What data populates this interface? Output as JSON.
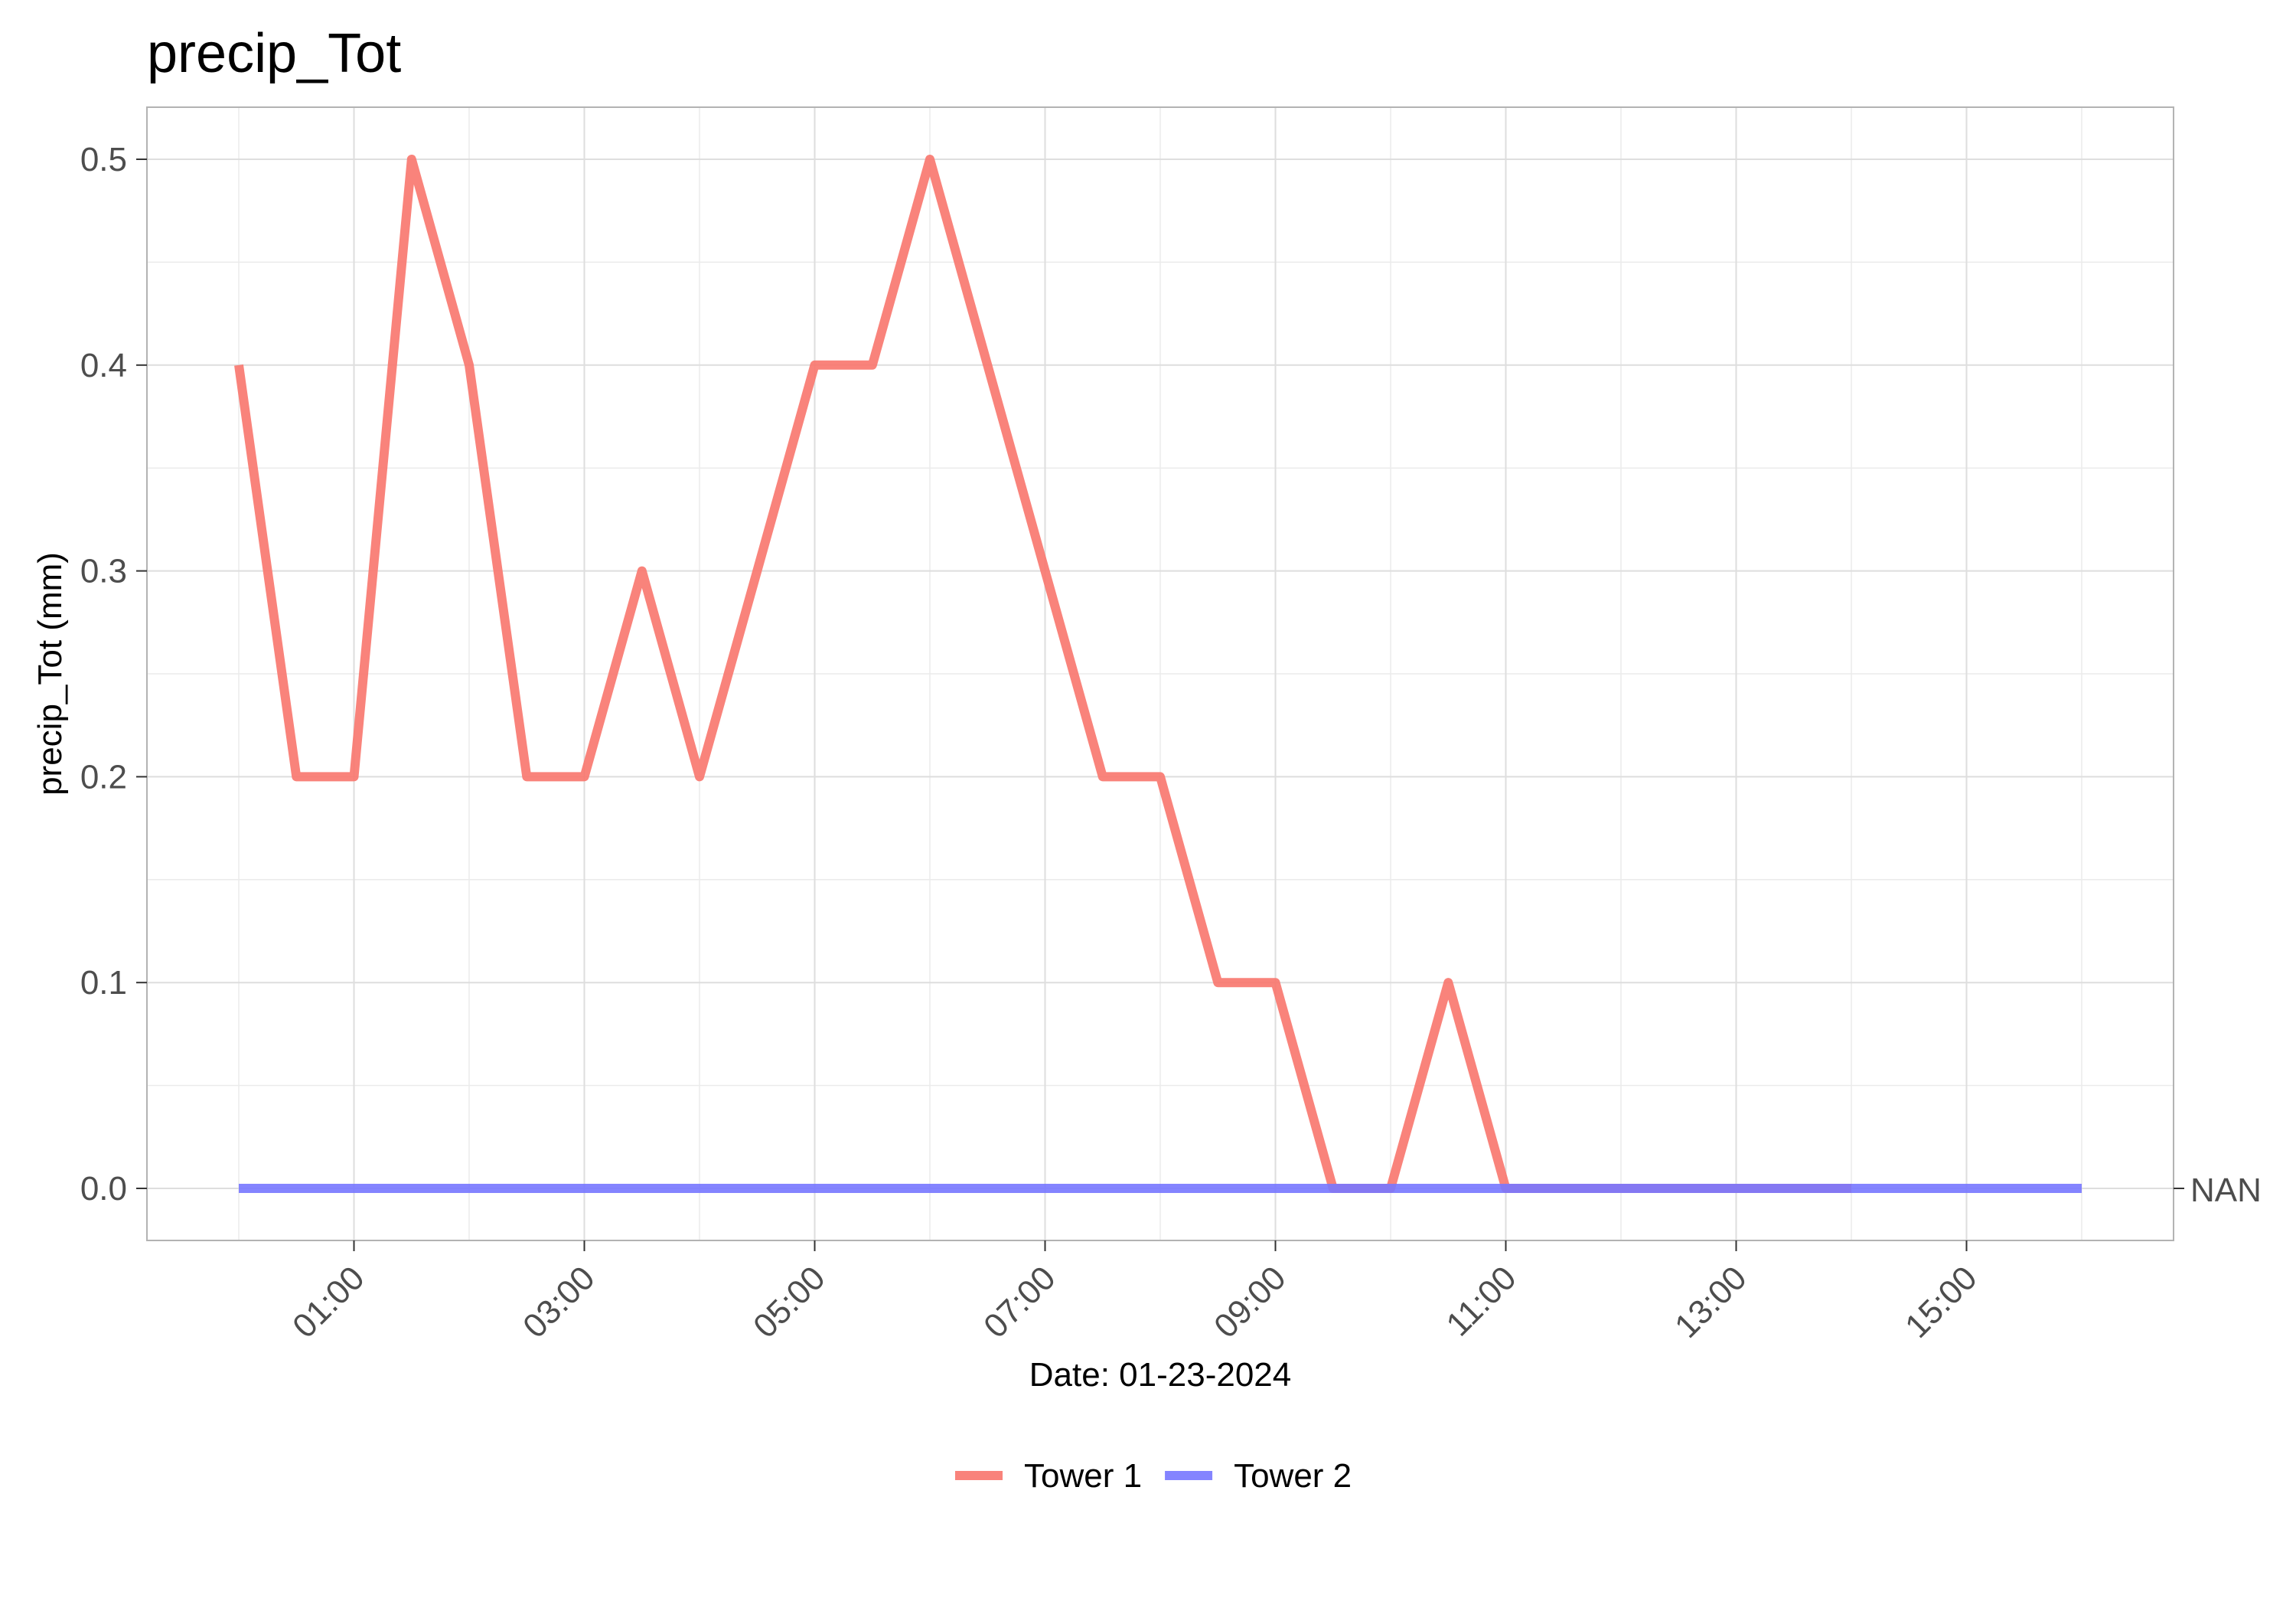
{
  "chart_data": {
    "type": "line",
    "title": "precip_Tot",
    "xlabel": "Date: 01-23-2024",
    "ylabel": "precip_Tot (mm)",
    "xlim": [
      "00:00",
      "16:00"
    ],
    "ylim": [
      0,
      0.5
    ],
    "x_ticks": [
      "01:00",
      "03:00",
      "05:00",
      "07:00",
      "09:00",
      "11:00",
      "13:00",
      "15:00"
    ],
    "y_ticks": [
      "0.0",
      "0.1",
      "0.2",
      "0.3",
      "0.4",
      "0.5"
    ],
    "right_axis_label": "NAN",
    "grid": true,
    "legend_position": "bottom",
    "series": [
      {
        "name": "Tower 1",
        "color": "#F8766D",
        "x": [
          "00:00",
          "00:30",
          "01:00",
          "01:30",
          "02:00",
          "02:30",
          "03:00",
          "03:30",
          "04:00",
          "04:30",
          "05:00",
          "05:30",
          "06:00",
          "06:30",
          "07:00",
          "07:30",
          "08:00",
          "08:30",
          "09:00",
          "09:30",
          "10:00",
          "10:30",
          "11:00",
          "11:30",
          "12:00",
          "12:30",
          "13:00",
          "13:30",
          "14:00"
        ],
        "values": [
          0.4,
          0.2,
          0.2,
          0.5,
          0.4,
          0.2,
          0.2,
          0.3,
          0.2,
          0.3,
          0.4,
          0.4,
          0.5,
          0.4,
          0.3,
          0.2,
          0.2,
          0.1,
          0.1,
          0.0,
          0.0,
          0.1,
          0.0,
          0.0,
          0.0,
          0.0,
          0.0,
          0.0,
          0.0
        ]
      },
      {
        "name": "Tower 2",
        "color": "#7777FF",
        "x": [
          "00:00",
          "16:00"
        ],
        "values": [
          0.0,
          0.0
        ]
      }
    ]
  }
}
